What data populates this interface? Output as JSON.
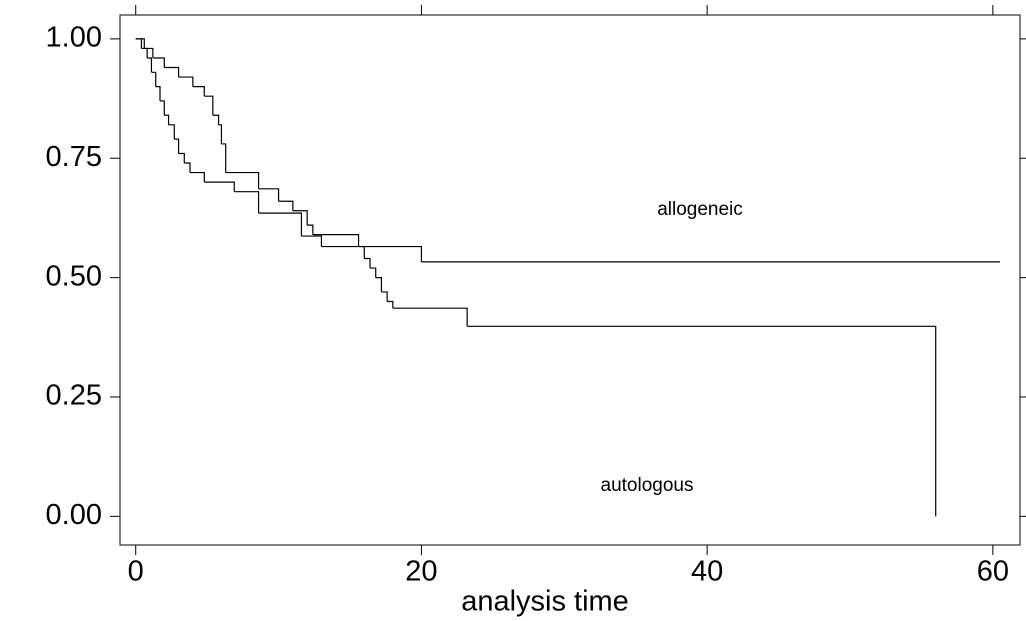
{
  "chart_data": {
    "type": "step",
    "xlabel": "analysis time",
    "xlim": [
      -1.1,
      61.9
    ],
    "ylim": [
      -0.06,
      1.05
    ],
    "xticks": [
      0,
      20,
      40,
      60
    ],
    "yticks": [
      {
        "value": 0,
        "label": "0.00"
      },
      {
        "value": 0.25,
        "label": "0.25"
      },
      {
        "value": 0.5,
        "label": "0.50"
      },
      {
        "value": 0.75,
        "label": "0.75"
      },
      {
        "value": 1,
        "label": "1.00"
      }
    ],
    "color": "#000000",
    "series": [
      {
        "name": "allogeneic",
        "x": [
          0,
          0.4,
          0.8,
          1.1,
          1.4,
          1.7,
          2.0,
          2.3,
          2.7,
          3.0,
          3.4,
          3.8,
          4.8,
          6.9,
          8.6,
          11.6,
          13.0,
          20.0,
          60.5
        ],
        "values": [
          1,
          0.98,
          0.96,
          0.93,
          0.9,
          0.87,
          0.84,
          0.82,
          0.79,
          0.76,
          0.74,
          0.72,
          0.7,
          0.68,
          0.635,
          0.587,
          0.565,
          0.533,
          0.533
        ]
      },
      {
        "name": "autologous",
        "x": [
          0,
          0.6,
          1.2,
          2.0,
          3.0,
          4.0,
          4.8,
          5.4,
          5.8,
          6.0,
          6.3,
          8.6,
          10.0,
          11.0,
          12.0,
          12.4,
          15.6,
          16.0,
          16.4,
          16.8,
          17.2,
          17.6,
          18.0,
          23.2,
          56.0
        ],
        "values": [
          1,
          0.98,
          0.96,
          0.94,
          0.92,
          0.9,
          0.88,
          0.84,
          0.82,
          0.78,
          0.72,
          0.686,
          0.66,
          0.64,
          0.61,
          0.59,
          0.565,
          0.54,
          0.52,
          0.5,
          0.47,
          0.45,
          0.436,
          0.398,
          0
        ]
      }
    ]
  }
}
